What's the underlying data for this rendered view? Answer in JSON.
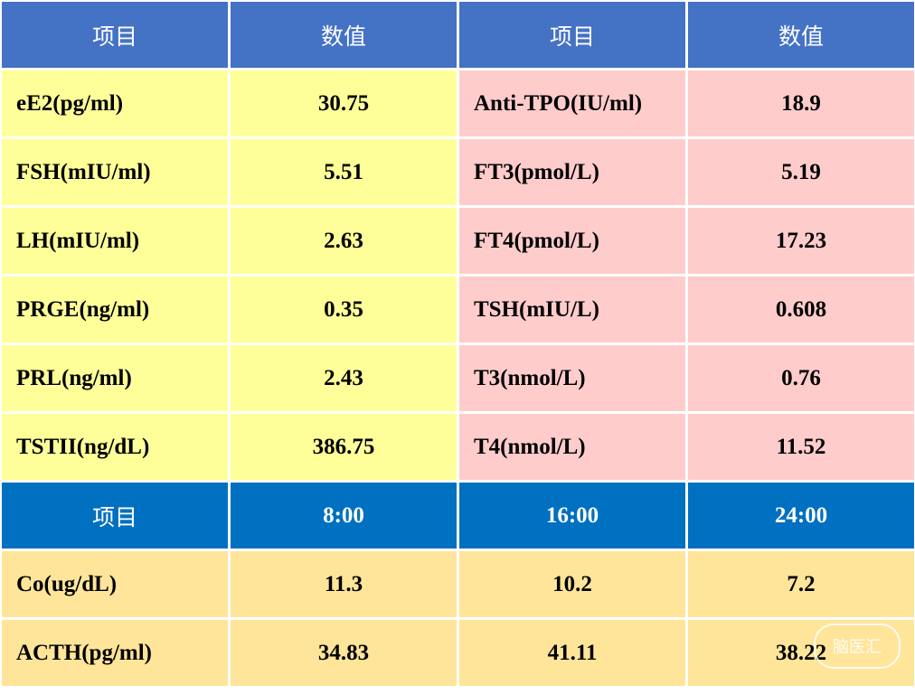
{
  "table1": {
    "headers": [
      "项目",
      "数值",
      "项目",
      "数值"
    ],
    "rows": [
      [
        "eE2(pg/ml)",
        "30.75",
        "Anti-TPO(IU/ml)",
        "18.9"
      ],
      [
        "FSH(mIU/ml)",
        "5.51",
        "FT3(pmol/L)",
        "5.19"
      ],
      [
        "LH(mIU/ml)",
        "2.63",
        "FT4(pmol/L)",
        "17.23"
      ],
      [
        "PRGE(ng/ml)",
        "0.35",
        "TSH(mIU/L)",
        "0.608"
      ],
      [
        "PRL(ng/ml)",
        "2.43",
        "T3(nmol/L)",
        "0.76"
      ],
      [
        "TSTII(ng/dL)",
        "386.75",
        "T4(nmol/L)",
        "11.52"
      ]
    ]
  },
  "table2": {
    "headers": [
      "项目",
      "8:00",
      "16:00",
      "24:00"
    ],
    "rows": [
      [
        "Co(ug/dL)",
        "11.3",
        "10.2",
        "7.2"
      ],
      [
        "ACTH(pg/ml)",
        "34.83",
        "41.11",
        "38.22"
      ]
    ]
  },
  "watermark": "脑医汇"
}
